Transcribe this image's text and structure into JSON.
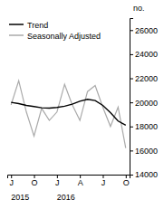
{
  "chart_data": {
    "type": "line",
    "ylabel": "no.",
    "categories": [
      "J",
      null,
      null,
      "O",
      null,
      null,
      "J",
      null,
      null,
      "A",
      null,
      null,
      "J",
      null,
      null,
      "O"
    ],
    "series": [
      {
        "name": "Trend",
        "color": "#000000",
        "values": [
          20000,
          19900,
          19750,
          19650,
          19550,
          19520,
          19580,
          19680,
          19850,
          20100,
          20250,
          20150,
          19750,
          19150,
          18450,
          18100
        ]
      },
      {
        "name": "Seasonally Adjusted",
        "color": "#aaaaaa",
        "values": [
          19800,
          21800,
          19200,
          17200,
          19500,
          18500,
          19200,
          21500,
          19800,
          18500,
          20900,
          21400,
          19600,
          18000,
          19600,
          16200
        ]
      }
    ],
    "ylim": [
      14000,
      27000
    ],
    "yticks": [
      14000,
      16000,
      18000,
      20000,
      22000,
      24000,
      26000
    ],
    "annotations": [
      {
        "text": "2015",
        "x": 0
      },
      {
        "text": "2016",
        "x": 6
      }
    ],
    "legend": "upper left",
    "grid": false
  }
}
